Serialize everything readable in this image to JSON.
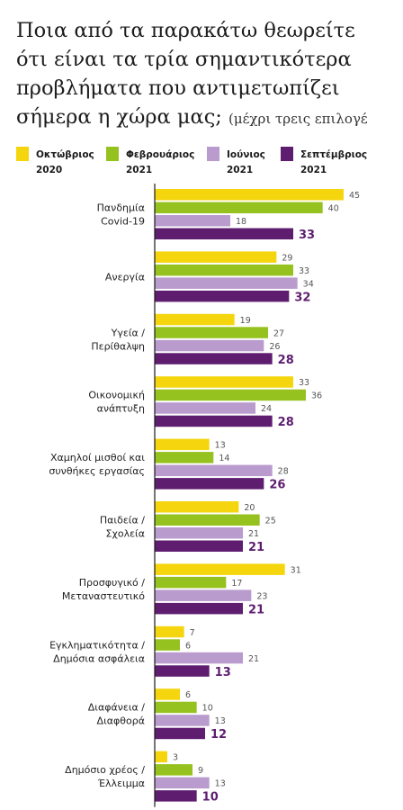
{
  "title": {
    "line1": "Ποια από τα παρακάτω θεωρείτε",
    "line2": "ότι είναι τα τρία σημαντικότερα",
    "line3": "προβλήματα που αντιμετωπίζει",
    "line4": "σήμερα η χώρα μας;",
    "subtitle": "(μέχρι τρεις επιλογέ"
  },
  "colors": {
    "oct2020": "#f5d60e",
    "feb2021": "#96c21f",
    "jun2021": "#b99bcd",
    "sep2021": "#5e1d6f"
  },
  "chart_data": {
    "type": "bar",
    "orientation": "horizontal",
    "xlim": [
      0,
      45
    ],
    "grid": false,
    "legend_position": "top",
    "categories": [
      [
        "Πανδημία",
        "Covid-19"
      ],
      [
        "Ανεργία"
      ],
      [
        "Υγεία /",
        "Περίθαλψη"
      ],
      [
        "Οικονομική",
        "ανάπτυξη"
      ],
      [
        "Χαμηλοί μισθοί και",
        "συνθήκες εργασίας"
      ],
      [
        "Παιδεία /",
        "Σχολεία"
      ],
      [
        "Προσφυγικό /",
        "Μεταναστευτικό"
      ],
      [
        "Εγκληματικότητα /",
        "Δημόσια ασφάλεια"
      ],
      [
        "Διαφάνεια /",
        "Διαφθορά"
      ],
      [
        "Δημόσιο χρέος /",
        "Έλλειμμα"
      ]
    ],
    "series": [
      {
        "name": "Οκτώβριος 2020",
        "legend": [
          "Οκτώβριος",
          "2020"
        ],
        "color": "#f5d60e",
        "values": [
          45,
          29,
          19,
          33,
          13,
          20,
          31,
          7,
          6,
          3
        ]
      },
      {
        "name": "Φεβρουάριος 2021",
        "legend": [
          "Φεβρουάριος",
          "2021"
        ],
        "color": "#96c21f",
        "values": [
          40,
          33,
          27,
          36,
          14,
          25,
          17,
          6,
          10,
          9
        ]
      },
      {
        "name": "Ιούνιος 2021",
        "legend": [
          "Ιούνιος",
          "2021"
        ],
        "color": "#b99bcd",
        "values": [
          18,
          34,
          26,
          24,
          28,
          21,
          23,
          21,
          13,
          13
        ]
      },
      {
        "name": "Σεπτέμβριος 2021",
        "legend": [
          "Σεπτέμβριος",
          "2021"
        ],
        "color": "#5e1d6f",
        "values": [
          33,
          32,
          28,
          28,
          26,
          21,
          21,
          13,
          12,
          10
        ]
      }
    ]
  }
}
